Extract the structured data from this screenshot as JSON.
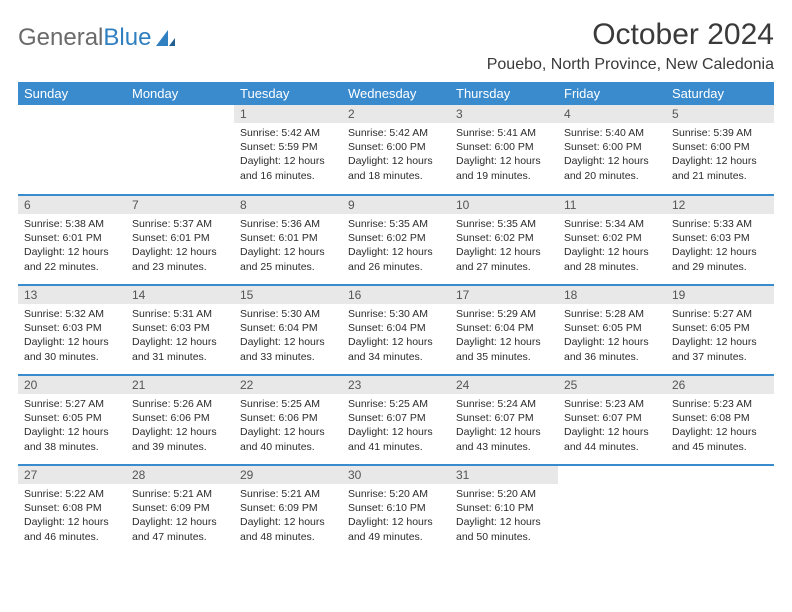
{
  "logo": {
    "text1": "General",
    "text2": "Blue"
  },
  "title": "October 2024",
  "location": "Pouebo, North Province, New Caledonia",
  "colors": {
    "header_bg": "#3a8bce",
    "header_text": "#ffffff",
    "daynum_bg": "#e8e8e8",
    "row_divider": "#3a8bce",
    "body_text": "#2c2c2c",
    "logo_gray": "#6a6a6a",
    "logo_blue": "#2f7fc1"
  },
  "day_names": [
    "Sunday",
    "Monday",
    "Tuesday",
    "Wednesday",
    "Thursday",
    "Friday",
    "Saturday"
  ],
  "weeks": [
    [
      {
        "n": "",
        "sr": "",
        "ss": "",
        "dl": ""
      },
      {
        "n": "",
        "sr": "",
        "ss": "",
        "dl": ""
      },
      {
        "n": "1",
        "sr": "Sunrise: 5:42 AM",
        "ss": "Sunset: 5:59 PM",
        "dl": "Daylight: 12 hours and 16 minutes."
      },
      {
        "n": "2",
        "sr": "Sunrise: 5:42 AM",
        "ss": "Sunset: 6:00 PM",
        "dl": "Daylight: 12 hours and 18 minutes."
      },
      {
        "n": "3",
        "sr": "Sunrise: 5:41 AM",
        "ss": "Sunset: 6:00 PM",
        "dl": "Daylight: 12 hours and 19 minutes."
      },
      {
        "n": "4",
        "sr": "Sunrise: 5:40 AM",
        "ss": "Sunset: 6:00 PM",
        "dl": "Daylight: 12 hours and 20 minutes."
      },
      {
        "n": "5",
        "sr": "Sunrise: 5:39 AM",
        "ss": "Sunset: 6:00 PM",
        "dl": "Daylight: 12 hours and 21 minutes."
      }
    ],
    [
      {
        "n": "6",
        "sr": "Sunrise: 5:38 AM",
        "ss": "Sunset: 6:01 PM",
        "dl": "Daylight: 12 hours and 22 minutes."
      },
      {
        "n": "7",
        "sr": "Sunrise: 5:37 AM",
        "ss": "Sunset: 6:01 PM",
        "dl": "Daylight: 12 hours and 23 minutes."
      },
      {
        "n": "8",
        "sr": "Sunrise: 5:36 AM",
        "ss": "Sunset: 6:01 PM",
        "dl": "Daylight: 12 hours and 25 minutes."
      },
      {
        "n": "9",
        "sr": "Sunrise: 5:35 AM",
        "ss": "Sunset: 6:02 PM",
        "dl": "Daylight: 12 hours and 26 minutes."
      },
      {
        "n": "10",
        "sr": "Sunrise: 5:35 AM",
        "ss": "Sunset: 6:02 PM",
        "dl": "Daylight: 12 hours and 27 minutes."
      },
      {
        "n": "11",
        "sr": "Sunrise: 5:34 AM",
        "ss": "Sunset: 6:02 PM",
        "dl": "Daylight: 12 hours and 28 minutes."
      },
      {
        "n": "12",
        "sr": "Sunrise: 5:33 AM",
        "ss": "Sunset: 6:03 PM",
        "dl": "Daylight: 12 hours and 29 minutes."
      }
    ],
    [
      {
        "n": "13",
        "sr": "Sunrise: 5:32 AM",
        "ss": "Sunset: 6:03 PM",
        "dl": "Daylight: 12 hours and 30 minutes."
      },
      {
        "n": "14",
        "sr": "Sunrise: 5:31 AM",
        "ss": "Sunset: 6:03 PM",
        "dl": "Daylight: 12 hours and 31 minutes."
      },
      {
        "n": "15",
        "sr": "Sunrise: 5:30 AM",
        "ss": "Sunset: 6:04 PM",
        "dl": "Daylight: 12 hours and 33 minutes."
      },
      {
        "n": "16",
        "sr": "Sunrise: 5:30 AM",
        "ss": "Sunset: 6:04 PM",
        "dl": "Daylight: 12 hours and 34 minutes."
      },
      {
        "n": "17",
        "sr": "Sunrise: 5:29 AM",
        "ss": "Sunset: 6:04 PM",
        "dl": "Daylight: 12 hours and 35 minutes."
      },
      {
        "n": "18",
        "sr": "Sunrise: 5:28 AM",
        "ss": "Sunset: 6:05 PM",
        "dl": "Daylight: 12 hours and 36 minutes."
      },
      {
        "n": "19",
        "sr": "Sunrise: 5:27 AM",
        "ss": "Sunset: 6:05 PM",
        "dl": "Daylight: 12 hours and 37 minutes."
      }
    ],
    [
      {
        "n": "20",
        "sr": "Sunrise: 5:27 AM",
        "ss": "Sunset: 6:05 PM",
        "dl": "Daylight: 12 hours and 38 minutes."
      },
      {
        "n": "21",
        "sr": "Sunrise: 5:26 AM",
        "ss": "Sunset: 6:06 PM",
        "dl": "Daylight: 12 hours and 39 minutes."
      },
      {
        "n": "22",
        "sr": "Sunrise: 5:25 AM",
        "ss": "Sunset: 6:06 PM",
        "dl": "Daylight: 12 hours and 40 minutes."
      },
      {
        "n": "23",
        "sr": "Sunrise: 5:25 AM",
        "ss": "Sunset: 6:07 PM",
        "dl": "Daylight: 12 hours and 41 minutes."
      },
      {
        "n": "24",
        "sr": "Sunrise: 5:24 AM",
        "ss": "Sunset: 6:07 PM",
        "dl": "Daylight: 12 hours and 43 minutes."
      },
      {
        "n": "25",
        "sr": "Sunrise: 5:23 AM",
        "ss": "Sunset: 6:07 PM",
        "dl": "Daylight: 12 hours and 44 minutes."
      },
      {
        "n": "26",
        "sr": "Sunrise: 5:23 AM",
        "ss": "Sunset: 6:08 PM",
        "dl": "Daylight: 12 hours and 45 minutes."
      }
    ],
    [
      {
        "n": "27",
        "sr": "Sunrise: 5:22 AM",
        "ss": "Sunset: 6:08 PM",
        "dl": "Daylight: 12 hours and 46 minutes."
      },
      {
        "n": "28",
        "sr": "Sunrise: 5:21 AM",
        "ss": "Sunset: 6:09 PM",
        "dl": "Daylight: 12 hours and 47 minutes."
      },
      {
        "n": "29",
        "sr": "Sunrise: 5:21 AM",
        "ss": "Sunset: 6:09 PM",
        "dl": "Daylight: 12 hours and 48 minutes."
      },
      {
        "n": "30",
        "sr": "Sunrise: 5:20 AM",
        "ss": "Sunset: 6:10 PM",
        "dl": "Daylight: 12 hours and 49 minutes."
      },
      {
        "n": "31",
        "sr": "Sunrise: 5:20 AM",
        "ss": "Sunset: 6:10 PM",
        "dl": "Daylight: 12 hours and 50 minutes."
      },
      {
        "n": "",
        "sr": "",
        "ss": "",
        "dl": ""
      },
      {
        "n": "",
        "sr": "",
        "ss": "",
        "dl": ""
      }
    ]
  ]
}
